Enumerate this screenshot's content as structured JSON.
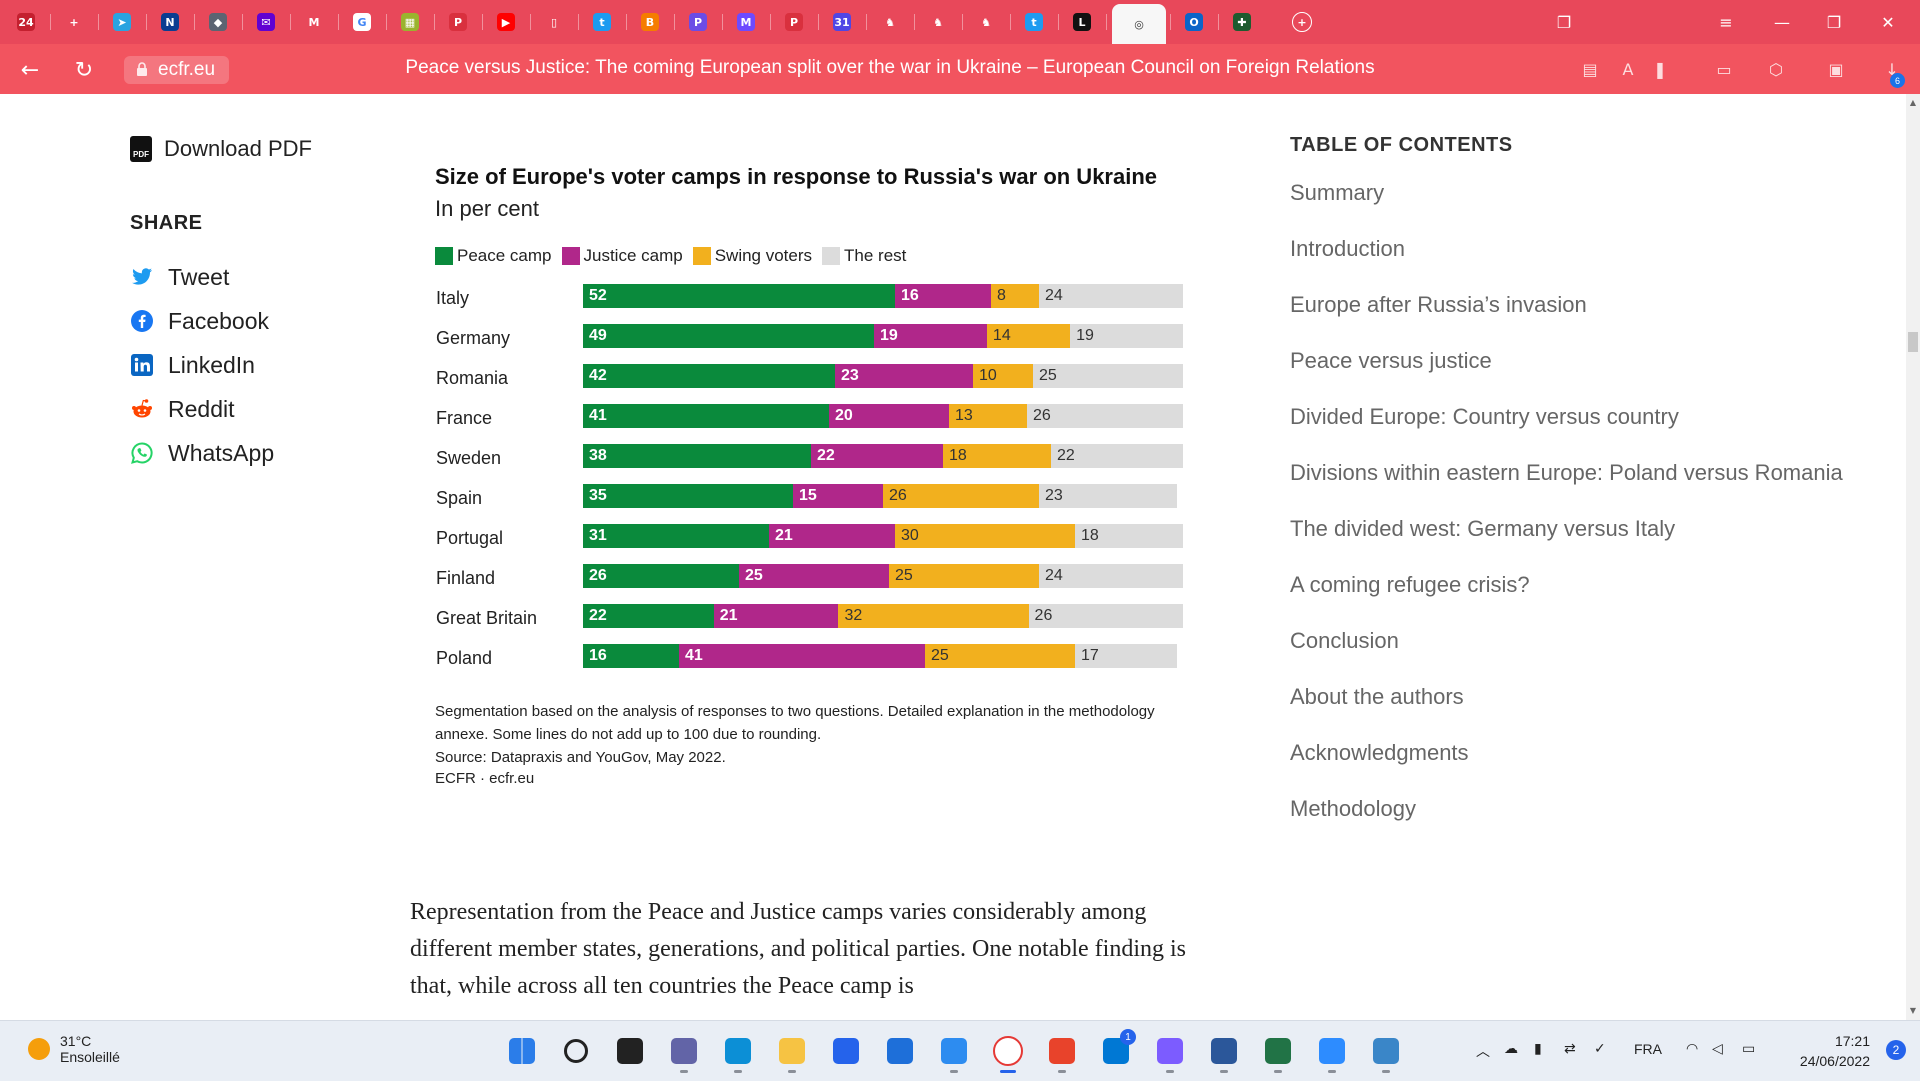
{
  "browser": {
    "tabs": [
      {
        "name": "news-24-tab-icon",
        "glyph": "24",
        "color": "#c4202f",
        "active": false
      },
      {
        "name": "new-tab-icon",
        "glyph": "+",
        "color": "transparent",
        "active": false
      },
      {
        "name": "telegram-tab-icon",
        "glyph": "➤",
        "color": "#2aa3e0",
        "active": false
      },
      {
        "name": "nasa-tab-icon",
        "glyph": "N",
        "color": "#0b3d91",
        "active": false
      },
      {
        "name": "shield-tab-icon",
        "glyph": "◆",
        "color": "#5b6472",
        "active": false
      },
      {
        "name": "yahoo-mail-tab-icon",
        "glyph": "✉",
        "color": "#6001d2",
        "active": false
      },
      {
        "name": "gmail-tab-icon",
        "glyph": "M",
        "color": "#e8485a",
        "active": false
      },
      {
        "name": "google-tab-icon",
        "glyph": "G",
        "color": "#ffffff",
        "active": false
      },
      {
        "name": "game-tab-icon",
        "glyph": "▦",
        "color": "#9ab32e",
        "active": false
      },
      {
        "name": "pdf-tab-icon",
        "glyph": "P",
        "color": "#d9303e",
        "active": false
      },
      {
        "name": "youtube-tab-icon",
        "glyph": "▶",
        "color": "#ff0000",
        "active": false
      },
      {
        "name": "document-tab-icon",
        "glyph": "▯",
        "color": "transparent",
        "active": false
      },
      {
        "name": "twitter-tab-icon",
        "glyph": "t",
        "color": "#1d9bf0",
        "active": false
      },
      {
        "name": "blogger-tab-icon",
        "glyph": "B",
        "color": "#f57d00",
        "active": false
      },
      {
        "name": "app-tab-icon",
        "glyph": "P",
        "color": "#6b4ce6",
        "active": false
      },
      {
        "name": "proton-mail-tab-icon",
        "glyph": "M",
        "color": "#6d4aff",
        "active": false
      },
      {
        "name": "pdf-tab-icon-2",
        "glyph": "P",
        "color": "#d9303e",
        "active": false
      },
      {
        "name": "calendar-tab-icon",
        "glyph": "31",
        "color": "#4f46e5",
        "active": false
      },
      {
        "name": "chess-tab-icon-1",
        "glyph": "♞",
        "color": "transparent",
        "active": false
      },
      {
        "name": "chess-tab-icon-2",
        "glyph": "♞",
        "color": "transparent",
        "active": false
      },
      {
        "name": "chess-tab-icon-3",
        "glyph": "♞",
        "color": "transparent",
        "active": false
      },
      {
        "name": "twitter-tab-icon-2",
        "glyph": "t",
        "color": "#1d9bf0",
        "active": false
      },
      {
        "name": "letter-l-tab-icon",
        "glyph": "L",
        "color": "#111111",
        "active": false
      },
      {
        "name": "ecfr-tab-icon",
        "glyph": "◎",
        "color": "transparent",
        "active": true
      },
      {
        "name": "outlook-tab-icon",
        "glyph": "O",
        "color": "#0a64c8",
        "active": false
      },
      {
        "name": "grid-tab-icon",
        "glyph": "✚",
        "color": "#1e5b2f",
        "active": false
      }
    ],
    "url": "ecfr.eu",
    "page_title": "Peace versus Justice: The coming European split over the war in Ukraine – European Council on Foreign Relations",
    "download_badge": "6"
  },
  "sidebar": {
    "download": "Download PDF",
    "pdf_glyph": "PDF",
    "share_title": "SHARE",
    "share_items": [
      {
        "label": "Tweet",
        "icon": "twitter-icon"
      },
      {
        "label": "Facebook",
        "icon": "facebook-icon"
      },
      {
        "label": "LinkedIn",
        "icon": "linkedin-icon"
      },
      {
        "label": "Reddit",
        "icon": "reddit-icon"
      },
      {
        "label": "WhatsApp",
        "icon": "whatsapp-icon"
      }
    ]
  },
  "chart_data": {
    "type": "bar",
    "orientation": "horizontal",
    "stacked": true,
    "title": "Size of Europe's voter camps in response to Russia's war on Ukraine",
    "subtitle": "In per cent",
    "categories": [
      "Italy",
      "Germany",
      "Romania",
      "France",
      "Sweden",
      "Spain",
      "Portugal",
      "Finland",
      "Great Britain",
      "Poland"
    ],
    "series": [
      {
        "name": "Peace camp",
        "color": "#0a8a3c",
        "values": [
          52,
          49,
          42,
          41,
          38,
          35,
          31,
          26,
          22,
          16
        ]
      },
      {
        "name": "Justice camp",
        "color": "#b0278a",
        "values": [
          16,
          19,
          23,
          20,
          22,
          15,
          21,
          25,
          21,
          41
        ]
      },
      {
        "name": "Swing voters",
        "color": "#f2b01e",
        "values": [
          8,
          14,
          10,
          13,
          18,
          26,
          30,
          25,
          32,
          25
        ]
      },
      {
        "name": "The rest",
        "color": "#dcdcdc",
        "values": [
          24,
          19,
          25,
          26,
          22,
          23,
          18,
          24,
          26,
          17
        ]
      }
    ],
    "legend_position": "top",
    "notes": [
      "Segmentation based on the analysis of responses to two questions. Detailed explanation in the methodology annexe. Some lines do not add up to 100 due to rounding.",
      "Source: Datapraxis and YouGov, May 2022.",
      "ECFR · ecfr.eu"
    ]
  },
  "toc": {
    "title": "TABLE OF CONTENTS",
    "items": [
      "Summary",
      "Introduction",
      "Europe after Russia’s invasion",
      "Peace versus justice",
      "Divided Europe: Country versus country",
      "Divisions within eastern Europe: Poland versus Romania",
      "The divided west: Germany versus Italy",
      "A coming refugee crisis?",
      "Conclusion",
      "About the authors",
      "Acknowledgments",
      "Methodology"
    ]
  },
  "article": {
    "text": "Representation from the Peace and Justice camps varies considerably among different member states, generations, and political parties. One notable finding is that, while across all ten countries the Peace camp is"
  },
  "taskbar": {
    "weather_temp": "31°C",
    "weather_desc": "Ensoleillé",
    "language": "FRA",
    "time": "17:21",
    "date": "24/06/2022",
    "notification_count": "2",
    "store_badge": "1"
  }
}
